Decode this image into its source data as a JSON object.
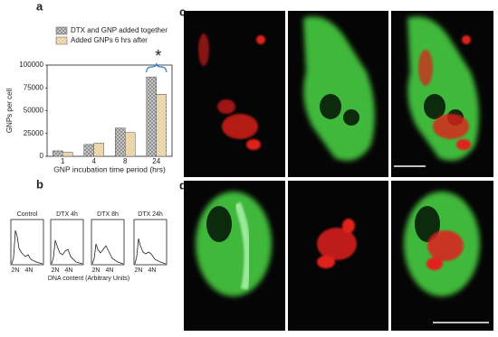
{
  "chart_data": [
    {
      "type": "bar",
      "categories": [
        "1",
        "4",
        "8",
        "24"
      ],
      "series": [
        {
          "name": "DTX and GNP added together",
          "color": "#c8c8c8",
          "values": [
            6000,
            13000,
            31000,
            87000
          ]
        },
        {
          "name": "Added GNPs 6 hrs after",
          "color": "#f3dfb8",
          "values": [
            4500,
            14500,
            26000,
            68000
          ]
        }
      ],
      "ylabel": "GNPs per cell",
      "xlabel": "GNP incubation time period (hrs)",
      "ylim": [
        0,
        100000
      ],
      "yticks": [
        0,
        25000,
        50000,
        75000,
        100000
      ],
      "annotation": "*"
    }
  ],
  "figure": {
    "panel_labels": [
      "a",
      "b",
      "c",
      "d"
    ],
    "flow": {
      "titles": [
        "Control",
        "DTX 4h",
        "DTX 8h",
        "DTX 24h"
      ],
      "tick_labels": [
        "2N",
        "4N"
      ],
      "xlabel": "DNA content (Arbitrary Units)"
    }
  }
}
